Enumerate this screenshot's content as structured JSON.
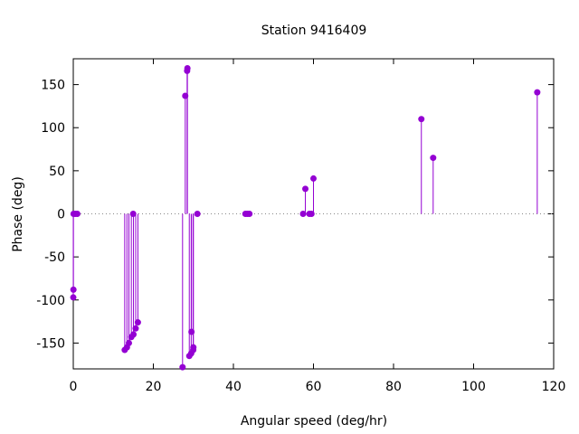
{
  "chart_data": {
    "type": "scatter",
    "style": "impulses-with-points",
    "title": "Station 9416409",
    "xlabel": "Angular speed (deg/hr)",
    "ylabel": "Phase (deg)",
    "xlim": [
      0,
      120
    ],
    "ylim": [
      -180,
      180
    ],
    "xticks": [
      0,
      20,
      40,
      60,
      80,
      100,
      120
    ],
    "yticks": [
      -150,
      -100,
      -50,
      0,
      50,
      100,
      150
    ],
    "zero_line": "dotted",
    "grid": false,
    "color": "#9400d3",
    "x_tick_labels": [
      "0",
      "20",
      "40",
      "60",
      "80",
      "100",
      "120"
    ],
    "y_tick_labels": [
      "-150",
      "-100",
      "-50",
      "0",
      "50",
      "100",
      "150"
    ],
    "points": [
      {
        "x": 0.0,
        "y": -97
      },
      {
        "x": 0.04,
        "y": -88
      },
      {
        "x": 0.08,
        "y": 0
      },
      {
        "x": 0.5,
        "y": 0
      },
      {
        "x": 1.0,
        "y": 0
      },
      {
        "x": 12.85,
        "y": -158
      },
      {
        "x": 13.4,
        "y": -155
      },
      {
        "x": 13.9,
        "y": -150
      },
      {
        "x": 14.5,
        "y": -143
      },
      {
        "x": 14.96,
        "y": 0
      },
      {
        "x": 15.04,
        "y": -140
      },
      {
        "x": 15.59,
        "y": -133
      },
      {
        "x": 16.14,
        "y": -126
      },
      {
        "x": 27.3,
        "y": -178
      },
      {
        "x": 27.97,
        "y": 137
      },
      {
        "x": 28.44,
        "y": 166
      },
      {
        "x": 28.51,
        "y": 169
      },
      {
        "x": 28.98,
        "y": -165
      },
      {
        "x": 29.46,
        "y": -162
      },
      {
        "x": 29.53,
        "y": -137
      },
      {
        "x": 29.96,
        "y": -158
      },
      {
        "x": 30.0,
        "y": -155
      },
      {
        "x": 31.0,
        "y": 0
      },
      {
        "x": 43.0,
        "y": 0
      },
      {
        "x": 43.5,
        "y": 0
      },
      {
        "x": 44.0,
        "y": 0
      },
      {
        "x": 57.4,
        "y": 0
      },
      {
        "x": 57.97,
        "y": 29
      },
      {
        "x": 58.98,
        "y": 0
      },
      {
        "x": 59.5,
        "y": 0
      },
      {
        "x": 60.0,
        "y": 41
      },
      {
        "x": 86.95,
        "y": 110
      },
      {
        "x": 89.9,
        "y": 65
      },
      {
        "x": 115.9,
        "y": 141
      }
    ]
  }
}
